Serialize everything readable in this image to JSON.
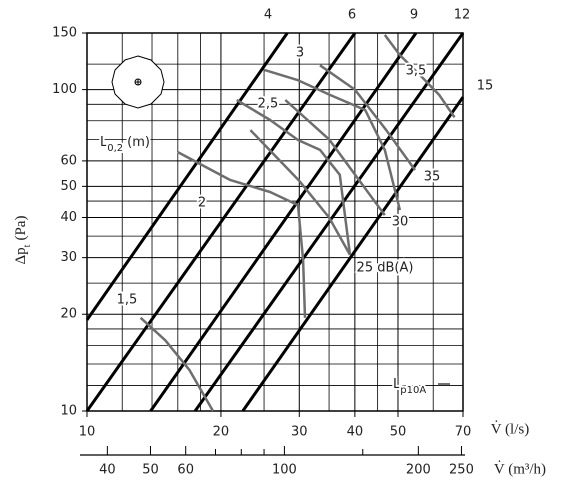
{
  "chart_data": {
    "type": "line",
    "xscale": "log",
    "yscale": "log",
    "grid": true,
    "xlabel": "V̇ (l/s)",
    "x2label": "V̇ (m³/h)",
    "ylabel": {
      "main": "Δp",
      "sub": "t",
      "suffix": "(Pa)"
    },
    "xlim": [
      10,
      70
    ],
    "xticks": [
      10,
      20,
      30,
      40,
      50,
      70
    ],
    "xminor": [
      12,
      14,
      16,
      18,
      25,
      35,
      45,
      60
    ],
    "x2lim": [
      36,
      252
    ],
    "x2ticks": [
      40,
      50,
      60,
      100,
      200,
      250
    ],
    "x2minor": [
      70,
      80,
      90,
      150
    ],
    "ylim": [
      10,
      150
    ],
    "yticks": [
      10,
      20,
      30,
      40,
      50,
      60,
      100,
      150
    ],
    "yminor": [
      12,
      14,
      16,
      18,
      25,
      35,
      45,
      70,
      80,
      90,
      120
    ],
    "throw_label": {
      "main": "L",
      "sub": "0,2",
      "suffix": "(m)"
    },
    "sound_label": {
      "main": "L",
      "sub": "p10A"
    },
    "series": [
      {
        "name": "4",
        "color": "#000000",
        "x": [
          10,
          28.2
        ],
        "y": [
          19.2,
          150
        ]
      },
      {
        "name": "6",
        "color": "#000000",
        "x": [
          10,
          40
        ],
        "y": [
          10,
          150
        ]
      },
      {
        "name": "9",
        "color": "#000000",
        "x": [
          13.9,
          54.9
        ],
        "y": [
          10,
          150
        ]
      },
      {
        "name": "12",
        "color": "#000000",
        "x": [
          17.5,
          70
        ],
        "y": [
          10,
          150
        ]
      },
      {
        "name": "15",
        "color": "#000000",
        "x": [
          22.4,
          70
        ],
        "y": [
          10,
          94.8
        ]
      },
      {
        "name": "1,5",
        "color": "#6e6e6e",
        "x": [
          13.2,
          15,
          17,
          19.2
        ],
        "y": [
          19.5,
          16.6,
          13.4,
          10
        ]
      },
      {
        "name": "2",
        "color": "#6e6e6e",
        "x": [
          16,
          21,
          25.8,
          29.8,
          30.6,
          30.9
        ],
        "y": [
          63.9,
          52.3,
          48,
          43.7,
          29.5,
          19.5
        ]
      },
      {
        "name": "2,5",
        "color": "#6e6e6e",
        "x": [
          21.7,
          25.8,
          29.8,
          33.4,
          37,
          39
        ],
        "y": [
          92.8,
          80.4,
          69.7,
          64.9,
          54.3,
          30.6
        ]
      },
      {
        "name": "3",
        "color": "#6e6e6e",
        "x": [
          25.1,
          29.8,
          35.2,
          42.2,
          46.7,
          50.5
        ],
        "y": [
          115,
          107,
          96.2,
          86.4,
          64.9,
          42.2
        ]
      },
      {
        "name": "3,5",
        "color": "#6e6e6e",
        "x": [
          46.7,
          50.5,
          56,
          62,
          67
        ],
        "y": [
          148,
          128,
          111,
          96,
          82
        ]
      },
      {
        "name": "35",
        "color": "#6e6e6e",
        "x": [
          33.4,
          40,
          47,
          54.6
        ],
        "y": [
          119,
          100,
          75,
          56.2
        ]
      },
      {
        "name": "30",
        "color": "#6e6e6e",
        "x": [
          27.9,
          35,
          41,
          46.7
        ],
        "y": [
          92.8,
          70,
          52,
          40.7
        ]
      },
      {
        "name": "25 dB(A)",
        "color": "#6e6e6e",
        "x": [
          23.3,
          30,
          35,
          39
        ],
        "y": [
          74.8,
          52,
          40,
          30.6
        ]
      }
    ]
  }
}
